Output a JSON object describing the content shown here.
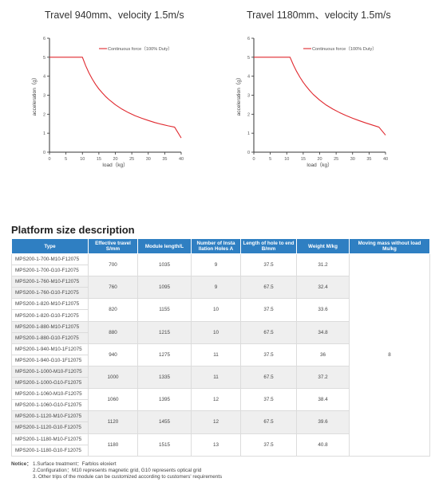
{
  "charts": [
    {
      "title": "Travel 940mm、velocity 1.5m/s",
      "chart_data": {
        "type": "line",
        "xlabel": "load（kg）",
        "ylabel": "acceleration（g）",
        "xlim": [
          0,
          40
        ],
        "ylim": [
          0,
          6
        ],
        "xticks": [
          "0",
          "5",
          "10",
          "15",
          "20",
          "25",
          "30",
          "35",
          "40"
        ],
        "yticks": [
          "0",
          "1",
          "2",
          "3",
          "4",
          "5",
          "6"
        ],
        "grid": false,
        "legend_placement": "top-right",
        "series": [
          {
            "name": "Continuous force（100% Duty）",
            "color": "#e0282e",
            "x": [
              0,
              10,
              11,
              12,
              13,
              14,
              15,
              16,
              17,
              18,
              20,
              22,
              24,
              26,
              28,
              30,
              32,
              34,
              36,
              38,
              40
            ],
            "y": [
              5,
              5,
              4.55,
              4.17,
              3.85,
              3.57,
              3.33,
              3.13,
              2.94,
              2.78,
              2.5,
              2.27,
              2.08,
              1.92,
              1.79,
              1.67,
              1.56,
              1.47,
              1.39,
              1.32,
              0.75
            ]
          }
        ]
      }
    },
    {
      "title": "Travel 1180mm、velocity 1.5m/s",
      "chart_data": {
        "type": "line",
        "xlabel": "load（kg）",
        "ylabel": "acceleration（g）",
        "xlim": [
          0,
          40
        ],
        "ylim": [
          0,
          6
        ],
        "xticks": [
          "0",
          "5",
          "10",
          "15",
          "20",
          "25",
          "30",
          "35",
          "40"
        ],
        "yticks": [
          "0",
          "1",
          "2",
          "3",
          "4",
          "5",
          "6"
        ],
        "grid": false,
        "legend_placement": "top-right",
        "series": [
          {
            "name": "Continuous force（100% Duty）",
            "color": "#e0282e",
            "x": [
              0,
              11,
              12,
              13,
              14,
              15,
              16,
              17,
              18,
              20,
              22,
              24,
              26,
              28,
              30,
              32,
              34,
              36,
              38,
              40
            ],
            "y": [
              5,
              5,
              4.6,
              4.25,
              3.95,
              3.68,
              3.45,
              3.24,
              3.05,
              2.74,
              2.48,
              2.27,
              2.09,
              1.93,
              1.79,
              1.66,
              1.54,
              1.43,
              1.32,
              0.9
            ]
          }
        ]
      }
    }
  ],
  "table": {
    "title": "Platform size description",
    "headers": [
      "Type",
      "Effective travel S/mm",
      "Module length/L",
      "Number of Insta llation Holes A",
      "Length of hole to end B/mm",
      "Weight M/kg",
      "Moving mass without load Ms/kg"
    ],
    "moving_mass": "8",
    "groups": [
      {
        "types": [
          "MPS200-1-700-M10-F12075",
          "MPS200-1-700-G10-F12075"
        ],
        "travel": "700",
        "length": "1035",
        "holes": "9",
        "hole_end": "37.5",
        "weight": "31.2"
      },
      {
        "types": [
          "MPS200-1-760-M10-F12075",
          "MPS200-1-760-G10-F12075"
        ],
        "travel": "760",
        "length": "1095",
        "holes": "9",
        "hole_end": "67.5",
        "weight": "32.4"
      },
      {
        "types": [
          "MPS200-1-820-M10-F12075",
          "MPS200-1-820-G10-F12075"
        ],
        "travel": "820",
        "length": "1155",
        "holes": "10",
        "hole_end": "37.5",
        "weight": "33.6"
      },
      {
        "types": [
          "MPS200-1-880-M10-F12075",
          "MPS200-1-880-G10-F12075"
        ],
        "travel": "880",
        "length": "1215",
        "holes": "10",
        "hole_end": "67.5",
        "weight": "34.8"
      },
      {
        "types": [
          "MPS200-1-940-M10-1F12075",
          "MPS200-1-940-G10-1F12075"
        ],
        "travel": "940",
        "length": "1275",
        "holes": "11",
        "hole_end": "37.5",
        "weight": "36"
      },
      {
        "types": [
          "MPS200-1-1000-M10-F12075",
          "MPS200-1-1000-G10-F12075"
        ],
        "travel": "1000",
        "length": "1335",
        "holes": "11",
        "hole_end": "67.5",
        "weight": "37.2"
      },
      {
        "types": [
          "MPS200-1-1060-M10-F12075",
          "MPS200-1-1060-G10-F12075"
        ],
        "travel": "1060",
        "length": "1395",
        "holes": "12",
        "hole_end": "37.5",
        "weight": "38.4"
      },
      {
        "types": [
          "MPS200-1-1120-M10-F12075",
          "MPS200-1-1120-G10-F12075"
        ],
        "travel": "1120",
        "length": "1455",
        "holes": "12",
        "hole_end": "67.5",
        "weight": "39.6"
      },
      {
        "types": [
          "MPS200-1-1180-M10-F12075",
          "MPS200-1-1180-G10-F12075"
        ],
        "travel": "1180",
        "length": "1515",
        "holes": "13",
        "hole_end": "37.5",
        "weight": "40.8"
      }
    ],
    "header_color": "#2f7fc2",
    "shade_color": "#efefef"
  },
  "notice": {
    "lead": "Notice：",
    "lines": [
      "1.Surface treatment：Farblos eloxiert",
      "2.Configuration：M10 represents magnetic grid, G10 represents optical grid",
      "3. Other trips of the module can be customized according to customers' requirements"
    ]
  }
}
